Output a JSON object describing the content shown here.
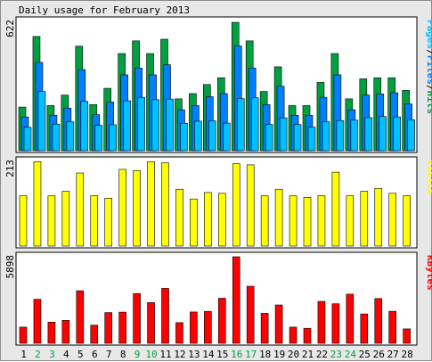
{
  "title": "Daily usage for February 2013",
  "colors": {
    "hits": "#00a040",
    "files": "#0080ff",
    "pages": "#00c0ff",
    "visits": "#ffff00",
    "kbytes": "#ff0000",
    "weekend_label": "#00a040",
    "weekday_label": "#000000",
    "panel_bg": "#ffffff",
    "frame_bg": "#e8e8e8"
  },
  "chart_data": [
    {
      "type": "bar",
      "title": "",
      "legend": [
        "Pages",
        "Files",
        "Hits"
      ],
      "ymax_label": "622",
      "ylim": [
        0,
        622
      ],
      "categories": [
        "1",
        "2",
        "3",
        "4",
        "5",
        "6",
        "7",
        "8",
        "9",
        "10",
        "11",
        "12",
        "13",
        "14",
        "15",
        "16",
        "17",
        "18",
        "19",
        "20",
        "21",
        "22",
        "23",
        "24",
        "25",
        "26",
        "27",
        "28"
      ],
      "series": [
        {
          "name": "Hits",
          "values": [
            207,
            542,
            214,
            264,
            496,
            219,
            296,
            461,
            521,
            461,
            529,
            246,
            271,
            314,
            346,
            609,
            521,
            281,
            398,
            214,
            214,
            324,
            461,
            246,
            341,
            346,
            346,
            286
          ]
        },
        {
          "name": "Files",
          "values": [
            160,
            419,
            168,
            202,
            385,
            171,
            231,
            360,
            392,
            360,
            408,
            194,
            214,
            256,
            271,
            497,
            392,
            219,
            306,
            168,
            168,
            253,
            360,
            194,
            264,
            269,
            275,
            222
          ]
        },
        {
          "name": "Pages",
          "values": [
            111,
            281,
            126,
            137,
            234,
            120,
            123,
            237,
            253,
            242,
            245,
            130,
            140,
            142,
            131,
            247,
            251,
            125,
            156,
            124,
            112,
            138,
            143,
            145,
            157,
            162,
            160,
            147
          ]
        }
      ]
    },
    {
      "type": "bar",
      "title": "",
      "legend": [
        "Visits"
      ],
      "ymax_label": "213",
      "ylim": [
        0,
        213
      ],
      "categories": [
        "1",
        "2",
        "3",
        "4",
        "5",
        "6",
        "7",
        "8",
        "9",
        "10",
        "11",
        "12",
        "13",
        "14",
        "15",
        "16",
        "17",
        "18",
        "19",
        "20",
        "21",
        "22",
        "23",
        "24",
        "25",
        "26",
        "27",
        "28"
      ],
      "series": [
        {
          "name": "Visits",
          "values": [
            124,
            208,
            124,
            135,
            180,
            124,
            118,
            189,
            186,
            208,
            205,
            140,
            116,
            132,
            130,
            203,
            200,
            124,
            140,
            124,
            120,
            124,
            182,
            124,
            135,
            142,
            130,
            124
          ]
        }
      ]
    },
    {
      "type": "bar",
      "title": "",
      "legend": [
        "KBytes"
      ],
      "ymax_label": "5898",
      "ylim": [
        0,
        5898
      ],
      "categories": [
        "1",
        "2",
        "3",
        "4",
        "5",
        "6",
        "7",
        "8",
        "9",
        "10",
        "11",
        "12",
        "13",
        "14",
        "15",
        "16",
        "17",
        "18",
        "19",
        "20",
        "21",
        "22",
        "23",
        "24",
        "25",
        "26",
        "27",
        "28"
      ],
      "series": [
        {
          "name": "KBytes",
          "values": [
            1080,
            2940,
            1410,
            1530,
            3510,
            1210,
            2050,
            2080,
            3320,
            2720,
            3670,
            1380,
            2090,
            2130,
            3010,
            5780,
            3810,
            2000,
            2560,
            1080,
            1000,
            2800,
            2640,
            3280,
            1960,
            2990,
            2140,
            960
          ]
        }
      ]
    }
  ],
  "weekend_days": [
    "2",
    "3",
    "9",
    "10",
    "16",
    "17",
    "23",
    "24"
  ]
}
